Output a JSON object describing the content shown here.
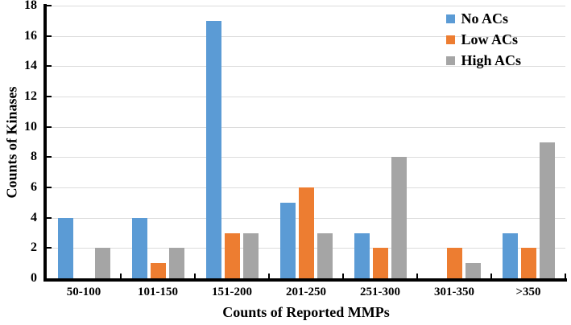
{
  "chart_data": {
    "type": "bar",
    "title": "",
    "categories": [
      "50-100",
      "101-150",
      "151-200",
      "201-250",
      "251-300",
      "301-350",
      ">350"
    ],
    "series": [
      {
        "name": "No ACs",
        "color": "#5B9BD5",
        "values": [
          4,
          4,
          17,
          5,
          3,
          0,
          3
        ]
      },
      {
        "name": "Low ACs",
        "color": "#ED7D31",
        "values": [
          0,
          1,
          3,
          6,
          2,
          2,
          2
        ]
      },
      {
        "name": "High ACs",
        "color": "#A5A5A5",
        "values": [
          2,
          2,
          3,
          3,
          8,
          1,
          9
        ]
      }
    ],
    "xlabel": "Counts of Reported MMPs",
    "ylabel": "Counts of Kinases",
    "ylim": [
      0,
      18
    ],
    "yticks": [
      "0",
      "2",
      "4",
      "6",
      "8",
      "10",
      "12",
      "14",
      "16",
      "18"
    ],
    "grid": true,
    "legend_position": "top-right",
    "gridline_color": "#dcdcdc",
    "axis_color": "#000000"
  }
}
